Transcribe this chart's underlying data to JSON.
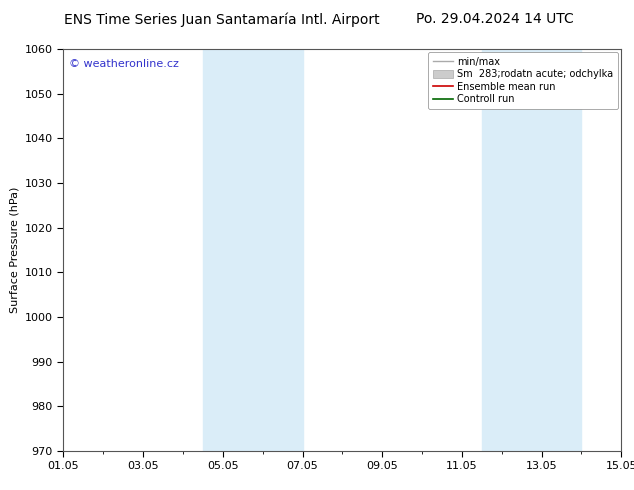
{
  "title_left": "ENS Time Series Juan Santamaría Intl. Airport",
  "title_right": "Po. 29.04.2024 14 UTC",
  "ylabel": "Surface Pressure (hPa)",
  "ylim": [
    970,
    1060
  ],
  "yticks": [
    970,
    980,
    990,
    1000,
    1010,
    1020,
    1030,
    1040,
    1050,
    1060
  ],
  "xtick_labels": [
    "01.05",
    "03.05",
    "05.05",
    "07.05",
    "09.05",
    "11.05",
    "13.05",
    "15.05"
  ],
  "xtick_positions": [
    0,
    2,
    4,
    6,
    8,
    10,
    12,
    14
  ],
  "shaded_bands": [
    {
      "xstart": 3.5,
      "xend": 6.0,
      "color": "#daedf8"
    },
    {
      "xstart": 10.5,
      "xend": 13.0,
      "color": "#daedf8"
    }
  ],
  "watermark": "© weatheronline.cz",
  "watermark_color": "#3333cc",
  "bg_color": "#ffffff",
  "plot_bg_color": "#ffffff",
  "title_fontsize": 10,
  "axis_label_fontsize": 8,
  "tick_fontsize": 8,
  "legend_fontsize": 7
}
